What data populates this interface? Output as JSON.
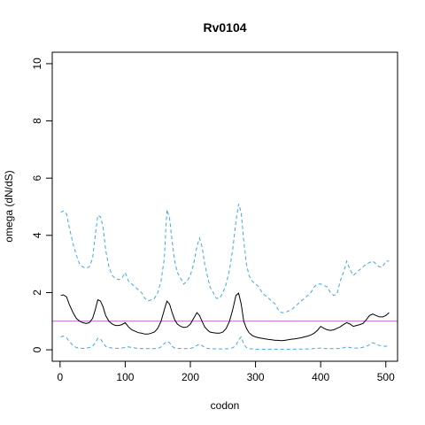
{
  "chart_data": {
    "type": "line",
    "title": "Rv0104",
    "xlabel": "codon",
    "ylabel": "omega (dN/dS)",
    "xlim": [
      -12,
      518
    ],
    "ylim": [
      -0.4,
      10.4
    ],
    "xticks": [
      0,
      100,
      200,
      300,
      400,
      500
    ],
    "yticks": [
      0,
      2,
      4,
      6,
      8,
      10
    ],
    "reference_line": {
      "y": 1,
      "color": "#b565c9"
    },
    "colors": {
      "estimate": "#000000",
      "bounds": "#3fa9e0"
    },
    "series": [
      {
        "role": "upper-bound",
        "style": "dashed",
        "x": [
          1,
          5,
          10,
          14,
          20,
          25,
          30,
          35,
          40,
          45,
          50,
          54,
          58,
          62,
          66,
          70,
          75,
          80,
          85,
          90,
          95,
          100,
          105,
          110,
          115,
          120,
          125,
          130,
          135,
          140,
          145,
          150,
          155,
          160,
          164,
          168,
          172,
          176,
          180,
          185,
          190,
          195,
          200,
          205,
          210,
          214,
          218,
          222,
          226,
          230,
          235,
          240,
          245,
          250,
          255,
          260,
          265,
          270,
          274,
          278,
          282,
          286,
          290,
          295,
          300,
          305,
          310,
          315,
          320,
          325,
          330,
          335,
          340,
          345,
          350,
          355,
          360,
          365,
          370,
          375,
          380,
          385,
          390,
          395,
          400,
          405,
          410,
          415,
          420,
          425,
          430,
          435,
          440,
          445,
          450,
          455,
          460,
          465,
          470,
          475,
          480,
          485,
          490,
          495,
          500,
          505
        ],
        "y": [
          4.8,
          4.85,
          4.75,
          4.3,
          3.7,
          3.3,
          3.0,
          2.9,
          2.85,
          2.9,
          3.2,
          4.0,
          4.7,
          4.65,
          4.3,
          3.5,
          2.9,
          2.6,
          2.5,
          2.45,
          2.5,
          2.7,
          2.4,
          2.3,
          2.2,
          2.1,
          2.0,
          1.8,
          1.7,
          1.75,
          1.8,
          2.0,
          2.4,
          3.2,
          4.9,
          4.6,
          3.8,
          3.1,
          2.7,
          2.5,
          2.3,
          2.4,
          2.6,
          3.0,
          3.6,
          3.9,
          3.6,
          3.0,
          2.6,
          2.2,
          2.0,
          1.8,
          1.8,
          2.0,
          2.3,
          2.8,
          3.5,
          4.5,
          5.1,
          4.8,
          3.8,
          3.0,
          2.6,
          2.4,
          2.3,
          2.2,
          2.0,
          1.9,
          1.8,
          1.7,
          1.6,
          1.4,
          1.3,
          1.3,
          1.35,
          1.4,
          1.5,
          1.6,
          1.7,
          1.8,
          1.9,
          2.0,
          2.2,
          2.3,
          2.3,
          2.25,
          2.2,
          2.0,
          1.9,
          1.95,
          2.4,
          2.7,
          3.1,
          2.8,
          2.6,
          2.7,
          2.8,
          2.9,
          3.0,
          3.05,
          3.1,
          3.0,
          2.9,
          2.9,
          3.1,
          3.1
        ]
      },
      {
        "role": "estimate",
        "style": "solid",
        "x": [
          1,
          5,
          10,
          14,
          20,
          25,
          30,
          35,
          40,
          45,
          50,
          54,
          58,
          62,
          66,
          70,
          75,
          80,
          85,
          90,
          95,
          100,
          105,
          110,
          115,
          120,
          125,
          130,
          135,
          140,
          145,
          150,
          155,
          160,
          164,
          168,
          172,
          176,
          180,
          185,
          190,
          195,
          200,
          205,
          210,
          214,
          218,
          222,
          226,
          230,
          235,
          240,
          245,
          250,
          255,
          260,
          265,
          270,
          274,
          278,
          282,
          286,
          290,
          295,
          300,
          305,
          310,
          315,
          320,
          325,
          330,
          335,
          340,
          345,
          350,
          355,
          360,
          365,
          370,
          375,
          380,
          385,
          390,
          395,
          400,
          405,
          410,
          415,
          420,
          425,
          430,
          435,
          440,
          445,
          450,
          455,
          460,
          465,
          470,
          475,
          480,
          485,
          490,
          495,
          500,
          505
        ],
        "y": [
          1.9,
          1.92,
          1.85,
          1.6,
          1.3,
          1.1,
          1.0,
          0.95,
          0.92,
          0.95,
          1.1,
          1.4,
          1.75,
          1.7,
          1.5,
          1.2,
          1.0,
          0.9,
          0.85,
          0.85,
          0.88,
          0.95,
          0.8,
          0.7,
          0.65,
          0.6,
          0.58,
          0.55,
          0.55,
          0.58,
          0.62,
          0.75,
          1.0,
          1.4,
          1.7,
          1.6,
          1.3,
          1.05,
          0.9,
          0.82,
          0.78,
          0.8,
          0.9,
          1.1,
          1.3,
          1.2,
          1.0,
          0.8,
          0.7,
          0.62,
          0.6,
          0.58,
          0.58,
          0.62,
          0.75,
          1.0,
          1.4,
          1.9,
          1.98,
          1.6,
          1.0,
          0.75,
          0.6,
          0.5,
          0.45,
          0.42,
          0.4,
          0.38,
          0.36,
          0.35,
          0.33,
          0.33,
          0.32,
          0.33,
          0.35,
          0.37,
          0.38,
          0.4,
          0.42,
          0.45,
          0.48,
          0.52,
          0.58,
          0.68,
          0.82,
          0.75,
          0.7,
          0.68,
          0.7,
          0.75,
          0.8,
          0.88,
          0.95,
          0.9,
          0.82,
          0.85,
          0.88,
          0.92,
          1.05,
          1.2,
          1.25,
          1.2,
          1.15,
          1.15,
          1.2,
          1.3
        ]
      },
      {
        "role": "lower-bound",
        "style": "dashed",
        "x": [
          1,
          5,
          10,
          14,
          20,
          25,
          30,
          35,
          40,
          45,
          50,
          54,
          58,
          62,
          66,
          70,
          75,
          80,
          90,
          100,
          105,
          110,
          120,
          130,
          140,
          150,
          155,
          160,
          164,
          168,
          172,
          176,
          180,
          190,
          200,
          205,
          210,
          214,
          218,
          222,
          226,
          230,
          240,
          250,
          260,
          265,
          270,
          274,
          278,
          282,
          286,
          290,
          300,
          320,
          340,
          360,
          380,
          400,
          405,
          410,
          420,
          430,
          435,
          440,
          445,
          450,
          460,
          470,
          475,
          480,
          490,
          500,
          505
        ],
        "y": [
          0.45,
          0.48,
          0.42,
          0.3,
          0.15,
          0.08,
          0.06,
          0.05,
          0.06,
          0.08,
          0.12,
          0.25,
          0.4,
          0.38,
          0.25,
          0.12,
          0.08,
          0.06,
          0.05,
          0.08,
          0.1,
          0.08,
          0.05,
          0.04,
          0.04,
          0.05,
          0.1,
          0.22,
          0.3,
          0.25,
          0.12,
          0.06,
          0.05,
          0.04,
          0.05,
          0.08,
          0.15,
          0.2,
          0.15,
          0.08,
          0.05,
          0.04,
          0.03,
          0.03,
          0.04,
          0.07,
          0.15,
          0.35,
          0.45,
          0.2,
          0.08,
          0.04,
          0.02,
          0.02,
          0.02,
          0.02,
          0.03,
          0.06,
          0.05,
          0.04,
          0.04,
          0.05,
          0.07,
          0.1,
          0.08,
          0.06,
          0.06,
          0.12,
          0.18,
          0.25,
          0.15,
          0.12,
          0.18
        ]
      }
    ]
  }
}
